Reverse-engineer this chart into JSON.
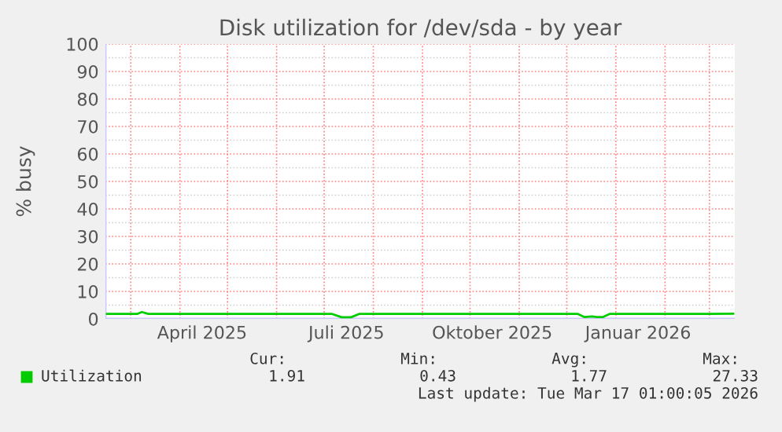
{
  "chart_data": {
    "type": "line",
    "title": "Disk utilization for /dev/sda - by year",
    "ylabel": "% busy",
    "x": [
      "2025-02-14",
      "2025-03-01",
      "2025-03-05",
      "2025-03-08",
      "2025-03-12",
      "2025-04-01",
      "2025-05-01",
      "2025-06-01",
      "2025-07-01",
      "2025-07-06",
      "2025-07-12",
      "2025-07-18",
      "2025-07-23",
      "2025-08-01",
      "2025-09-01",
      "2025-10-01",
      "2025-11-01",
      "2025-12-01",
      "2025-12-08",
      "2025-12-12",
      "2025-12-17",
      "2025-12-20",
      "2025-12-24",
      "2025-12-28",
      "2026-01-01",
      "2026-02-01",
      "2026-03-01",
      "2026-03-16"
    ],
    "series": [
      {
        "name": "Utilization",
        "color": "#00cc00",
        "values": [
          1.8,
          1.8,
          1.8,
          2.5,
          1.8,
          1.8,
          1.8,
          1.8,
          1.8,
          1.8,
          0.6,
          0.6,
          1.8,
          1.8,
          1.8,
          1.8,
          1.8,
          1.8,
          1.8,
          0.7,
          0.9,
          0.7,
          0.7,
          1.8,
          1.8,
          1.8,
          1.8,
          1.9
        ]
      }
    ],
    "xlim": [
      "2025-02-13",
      "2026-03-17"
    ],
    "xticks": [
      {
        "value": "2025-03-01",
        "label": null
      },
      {
        "value": "2025-04-01",
        "label": null
      },
      {
        "value": "2025-04-15",
        "label": "April 2025"
      },
      {
        "value": "2025-05-01",
        "label": null
      },
      {
        "value": "2025-06-01",
        "label": null
      },
      {
        "value": "2025-07-01",
        "label": null
      },
      {
        "value": "2025-07-15",
        "label": "Juli 2025"
      },
      {
        "value": "2025-08-01",
        "label": null
      },
      {
        "value": "2025-09-01",
        "label": null
      },
      {
        "value": "2025-10-01",
        "label": null
      },
      {
        "value": "2025-10-15",
        "label": "Oktober 2025"
      },
      {
        "value": "2025-11-01",
        "label": null
      },
      {
        "value": "2025-12-01",
        "label": null
      },
      {
        "value": "2026-01-01",
        "label": null
      },
      {
        "value": "2026-01-15",
        "label": "Januar 2026"
      },
      {
        "value": "2026-02-01",
        "label": null
      },
      {
        "value": "2026-03-01",
        "label": null
      }
    ],
    "ylim": [
      0,
      100
    ],
    "yticks": [
      0,
      10,
      20,
      30,
      40,
      50,
      60,
      70,
      80,
      90,
      100
    ],
    "grid": true,
    "legend": "bottom left",
    "annotations": [
      "Cur:",
      "Min:",
      "Avg:",
      "Max:",
      "1.91",
      "0.43",
      "1.77",
      "27.33",
      "Last update: Tue Mar 17 01:00:05 2026"
    ]
  }
}
